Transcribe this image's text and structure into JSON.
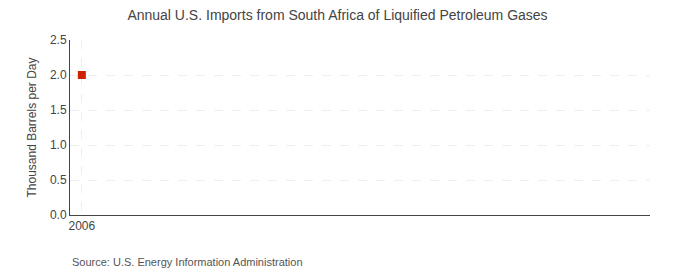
{
  "chart_data": {
    "type": "scatter",
    "title": "Annual U.S. Imports from South Africa of Liquified Petroleum Gases",
    "ylabel": "Thousand Barrels per Day",
    "source": "Source: U.S. Energy Information Administration",
    "x": [
      2006
    ],
    "values": [
      2.0
    ],
    "color": "#cc2200",
    "marker": "square",
    "xlim": [
      2005.5,
      2030
    ],
    "xticks": [
      2006
    ],
    "ylim": [
      0.0,
      2.5
    ],
    "yticks": [
      {
        "value": 0.0,
        "label": "0.0"
      },
      0.5,
      {
        "value": 1.0,
        "label": "1.0"
      },
      1.5,
      {
        "value": 2.0,
        "label": "2.0"
      },
      2.5
    ],
    "grid": true
  }
}
